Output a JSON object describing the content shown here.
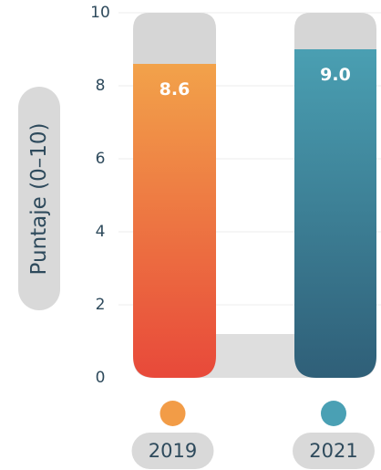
{
  "chart_data": {
    "type": "bar",
    "categories": [
      "2019",
      "2021"
    ],
    "values": [
      8.6,
      9.0
    ],
    "value_labels": [
      "8.6",
      "9.0"
    ],
    "ylabel": "Puntaje (0–10)",
    "ylim": [
      0,
      10
    ],
    "yticks": [
      "0",
      "2",
      "4",
      "6",
      "8",
      "10"
    ],
    "grid": true,
    "legend": "bottom",
    "colors": {
      "bar_2019_top": "#f2a24a",
      "bar_2019_bottom": "#e8493a",
      "bar_2021_top": "#4a9fb2",
      "bar_2021_bottom": "#2f5f78",
      "track": "#d6d6d6",
      "base": "#dedede",
      "legend_2019": "#f29c47",
      "legend_2021": "#4aa0b4",
      "pill": "#d9d9d9",
      "text": "#2e4a5c"
    }
  }
}
